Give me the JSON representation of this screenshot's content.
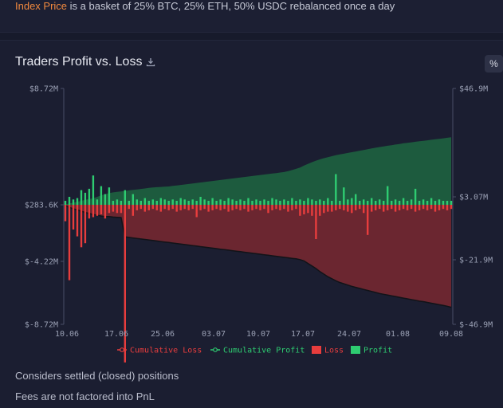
{
  "banner": {
    "accent_text": "Index Price",
    "rest_text": " is a basket of 25% BTC, 25% ETH, 50% USDC rebalanced once a day"
  },
  "card": {
    "title": "Traders Profit vs. Loss",
    "percent_button": "%",
    "notes": [
      "Considers settled (closed) positions",
      "Fees are not factored into PnL"
    ]
  },
  "colors": {
    "loss": "#e83d3d",
    "profit": "#2ecc71",
    "loss_area": "#6b2630",
    "profit_area": "#1d5b3e",
    "cumulative_loss_line": "#111318",
    "cumulative_profit_line": "#1d5b3e",
    "accent": "#f0883e"
  },
  "chart_data": {
    "type": "bar",
    "left_axis": {
      "ticks": [
        "$8.72M",
        "$283.6K",
        "$-4.22M",
        "$-8.72M"
      ],
      "ylim": [
        -8.72,
        8.72
      ],
      "unit": "M"
    },
    "right_axis": {
      "ticks": [
        "$46.9M",
        "$3.07M",
        "$-21.9M",
        "$-46.9M"
      ],
      "ylim": [
        -46.9,
        46.9
      ],
      "unit": "M"
    },
    "x_ticks": [
      "10.06",
      "17.06",
      "25.06",
      "03.07",
      "10.07",
      "17.07",
      "24.07",
      "01.08",
      "09.08"
    ],
    "grid": false,
    "legend_position": "bottom",
    "series": [
      {
        "name": "Cumulative Loss",
        "kind": "area",
        "values": [
          -0.3,
          -1.0,
          -1.6,
          -2.0,
          -2.5,
          -3.0,
          -3.4,
          -3.8,
          -4.1,
          -4.4,
          -4.6,
          -4.6,
          -4.8,
          -4.9,
          -5.0,
          -12.6,
          -12.8,
          -13.0,
          -13.2,
          -13.4,
          -13.6,
          -13.8,
          -14.0,
          -14.2,
          -14.4,
          -14.6,
          -14.8,
          -15.0,
          -15.2,
          -15.4,
          -15.6,
          -15.8,
          -16.0,
          -16.2,
          -16.4,
          -16.6,
          -16.8,
          -17.0,
          -17.2,
          -17.4,
          -17.6,
          -17.8,
          -18.0,
          -18.2,
          -18.4,
          -18.6,
          -18.8,
          -19.0,
          -19.2,
          -19.4,
          -19.6,
          -19.8,
          -20.0,
          -20.2,
          -20.4,
          -20.6,
          -20.8,
          -21.0,
          -21.2,
          -21.5,
          -22.0,
          -23.0,
          -24.0,
          -25.0,
          -26.2,
          -27.2,
          -28.2,
          -29.0,
          -29.8,
          -30.5,
          -31.0,
          -31.5,
          -32.0,
          -32.4,
          -32.8,
          -33.2,
          -33.6,
          -34.0,
          -34.4,
          -34.8,
          -35.1,
          -35.4,
          -35.7,
          -36.0,
          -36.3,
          -36.6,
          -36.9,
          -37.2,
          -37.5,
          -37.8,
          -38.0,
          -38.3,
          -38.6,
          -38.9,
          -39.2,
          -39.5,
          -39.8,
          -40.2
        ]
      },
      {
        "name": "Cumulative Profit",
        "kind": "area",
        "values": [
          0.2,
          0.5,
          0.9,
          1.2,
          1.6,
          2.0,
          2.3,
          2.6,
          3.2,
          3.8,
          4.3,
          4.7,
          5.0,
          5.2,
          5.4,
          5.6,
          5.8,
          6.0,
          6.2,
          6.4,
          6.6,
          6.8,
          7.0,
          7.1,
          7.2,
          7.3,
          7.4,
          7.6,
          7.8,
          8.0,
          8.2,
          8.4,
          8.6,
          8.8,
          9.0,
          9.2,
          9.4,
          9.6,
          9.8,
          10.0,
          10.2,
          10.4,
          10.6,
          10.8,
          11.0,
          11.2,
          11.4,
          11.6,
          11.8,
          12.0,
          12.2,
          12.4,
          12.6,
          12.8,
          13.0,
          13.2,
          13.6,
          14.0,
          14.5,
          15.0,
          15.8,
          16.5,
          17.2,
          17.8,
          18.3,
          18.8,
          19.2,
          19.6,
          20.0,
          20.3,
          20.6,
          20.9,
          21.2,
          21.5,
          21.8,
          22.1,
          22.4,
          22.7,
          23.0,
          23.3,
          23.5,
          23.8,
          24.0,
          24.3,
          24.5,
          24.8,
          25.0,
          25.2,
          25.4,
          25.6,
          25.8,
          26.0,
          26.2,
          26.4,
          26.6,
          26.8,
          27.0,
          27.2
        ]
      },
      {
        "name": "Loss",
        "kind": "bar",
        "values": [
          -1.2,
          -5.5,
          -1.8,
          -2.3,
          -3.1,
          -2.8,
          -1.0,
          -0.9,
          -0.8,
          -0.7,
          -1.0,
          -0.6,
          -0.5,
          -0.6,
          -0.6,
          -11.5,
          -0.3,
          -0.8,
          -0.4,
          -0.3,
          -0.5,
          -0.4,
          -0.3,
          -0.4,
          -0.5,
          -0.3,
          -0.4,
          -0.3,
          -0.5,
          -0.4,
          -0.3,
          -0.4,
          -0.3,
          -0.9,
          -0.4,
          -0.3,
          -0.5,
          -0.4,
          -0.3,
          -0.4,
          -0.3,
          -0.5,
          -0.4,
          -0.3,
          -0.4,
          -0.3,
          -0.5,
          -0.4,
          -0.3,
          -0.4,
          -0.3,
          -0.6,
          -0.4,
          -0.3,
          -0.4,
          -0.3,
          -0.5,
          -0.4,
          -0.3,
          -0.8,
          -0.7,
          -0.6,
          -0.8,
          -2.5,
          -0.8,
          -0.6,
          -0.5,
          -0.5,
          -0.4,
          -0.3,
          -0.4,
          -0.5,
          -0.6,
          -0.4,
          -0.3,
          -0.6,
          -2.2,
          -0.5,
          -0.4,
          -0.3,
          -0.5,
          -0.4,
          -0.3,
          -0.5,
          -0.4,
          -0.3,
          -0.4,
          -0.3,
          -0.5,
          -0.4,
          -0.3,
          -0.4,
          -0.3,
          -0.5,
          -0.4,
          -0.3,
          -0.4,
          -0.3
        ]
      },
      {
        "name": "Profit",
        "kind": "bar",
        "values": [
          0.3,
          0.6,
          0.4,
          0.5,
          1.1,
          0.9,
          1.2,
          2.2,
          0.4,
          1.4,
          0.8,
          1.3,
          0.3,
          0.4,
          0.3,
          1.1,
          0.3,
          0.8,
          0.4,
          0.3,
          0.5,
          0.3,
          0.4,
          0.3,
          0.5,
          0.4,
          0.3,
          0.4,
          0.3,
          0.5,
          0.4,
          0.3,
          0.4,
          0.3,
          0.6,
          0.4,
          0.3,
          0.5,
          0.3,
          0.4,
          0.3,
          0.5,
          0.4,
          0.3,
          0.4,
          0.3,
          0.5,
          0.3,
          0.4,
          0.3,
          0.4,
          0.3,
          0.5,
          0.4,
          0.3,
          0.4,
          0.3,
          0.5,
          0.3,
          0.4,
          0.3,
          0.5,
          0.4,
          0.3,
          0.4,
          0.3,
          0.5,
          0.3,
          2.3,
          0.3,
          1.3,
          0.4,
          0.5,
          0.8,
          0.3,
          0.4,
          0.3,
          0.5,
          0.3,
          0.4,
          0.3,
          1.4,
          0.3,
          0.4,
          0.3,
          0.5,
          0.3,
          0.4,
          1.2,
          0.3,
          0.4,
          0.3,
          0.5,
          0.3,
          0.4,
          0.3,
          0.3,
          0.3
        ]
      }
    ]
  }
}
